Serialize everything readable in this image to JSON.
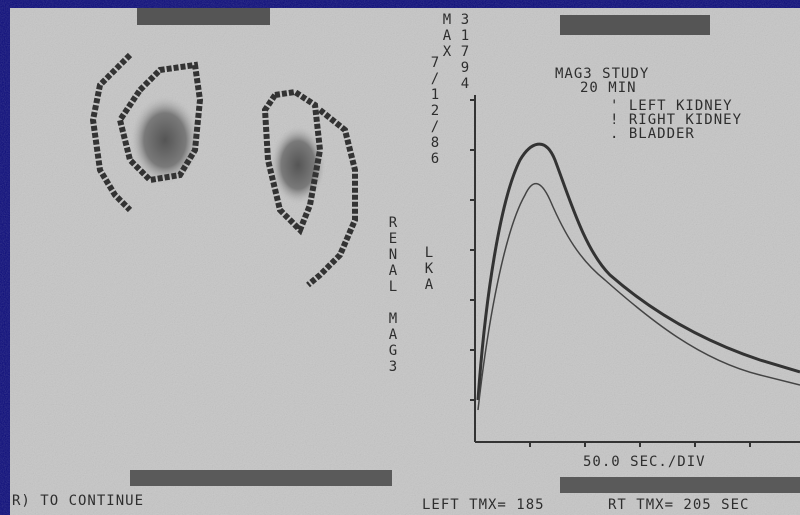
{
  "image_labels": {
    "max_label": "MAX",
    "max_count": "31794",
    "date": "7/12/86",
    "study_name": "RENAL MAG3",
    "view": "LKA"
  },
  "plot": {
    "legend": {
      "title": "MAG3 STUDY",
      "duration": "20 MIN",
      "items": [
        "' LEFT KIDNEY",
        "! RIGHT KIDNEY",
        ". BLADDER"
      ]
    },
    "x_scale": "50.0 SEC./DIV"
  },
  "footer": {
    "prompt": "R) TO CONTINUE",
    "left_tmax": "LEFT TMX= 185",
    "right_tmax": "RT TMX= 205 SEC"
  }
}
